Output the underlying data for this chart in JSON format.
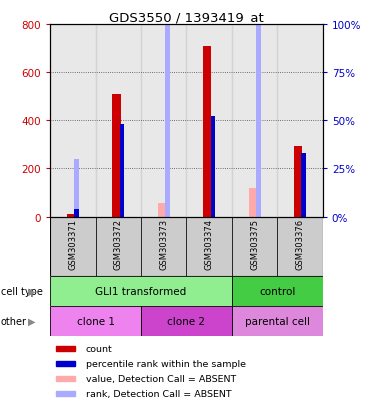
{
  "title": "GDS3550 / 1393419_at",
  "samples": [
    "GSM303371",
    "GSM303372",
    "GSM303373",
    "GSM303374",
    "GSM303375",
    "GSM303376"
  ],
  "count_values": [
    10,
    510,
    0,
    710,
    0,
    295
  ],
  "percentile_values": [
    4,
    48,
    0,
    52,
    0,
    33
  ],
  "absent_value_values": [
    0,
    0,
    55,
    0,
    120,
    0
  ],
  "absent_rank_values": [
    30,
    0,
    120,
    0,
    175,
    0
  ],
  "count_color": "#cc0000",
  "percentile_color": "#0000cc",
  "absent_value_color": "#ffaaaa",
  "absent_rank_color": "#aaaaff",
  "left_ylim": [
    0,
    800
  ],
  "right_ylim": [
    0,
    100
  ],
  "left_yticks": [
    0,
    200,
    400,
    600,
    800
  ],
  "right_yticks": [
    0,
    25,
    50,
    75,
    100
  ],
  "right_yticklabels": [
    "0%",
    "25%",
    "50%",
    "75%",
    "100%"
  ],
  "cell_type_labels": [
    {
      "text": "GLI1 transformed",
      "start": 0,
      "end": 4,
      "color": "#90ee90"
    },
    {
      "text": "control",
      "start": 4,
      "end": 6,
      "color": "#44cc44"
    }
  ],
  "other_labels": [
    {
      "text": "clone 1",
      "start": 0,
      "end": 2,
      "color": "#ee82ee"
    },
    {
      "text": "clone 2",
      "start": 2,
      "end": 4,
      "color": "#cc44cc"
    },
    {
      "text": "parental cell",
      "start": 4,
      "end": 6,
      "color": "#dd88dd"
    }
  ],
  "cell_type_row_label": "cell type",
  "other_row_label": "other",
  "legend_items": [
    {
      "label": "count",
      "color": "#cc0000"
    },
    {
      "label": "percentile rank within the sample",
      "color": "#0000cc"
    },
    {
      "label": "value, Detection Call = ABSENT",
      "color": "#ffaaaa"
    },
    {
      "label": "rank, Detection Call = ABSENT",
      "color": "#aaaaff"
    }
  ],
  "x_positions": [
    0,
    1,
    2,
    3,
    4,
    5
  ],
  "bg_color": "#cccccc",
  "plot_bg": "#ffffff",
  "left_ytick_color": "#cc0000",
  "right_ytick_color": "#0000cc"
}
